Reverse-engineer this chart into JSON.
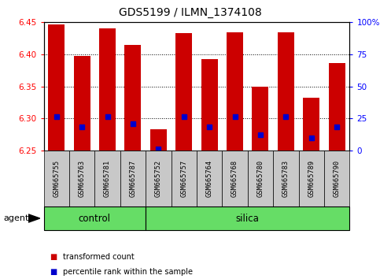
{
  "title": "GDS5199 / ILMN_1374108",
  "samples": [
    "GSM665755",
    "GSM665763",
    "GSM665781",
    "GSM665787",
    "GSM665752",
    "GSM665757",
    "GSM665764",
    "GSM665768",
    "GSM665780",
    "GSM665783",
    "GSM665789",
    "GSM665790"
  ],
  "n_control": 4,
  "n_silica": 8,
  "bar_tops": [
    6.447,
    6.398,
    6.44,
    6.415,
    6.283,
    6.433,
    6.393,
    6.435,
    6.35,
    6.435,
    6.333,
    6.387
  ],
  "blue_dots": [
    6.303,
    6.287,
    6.303,
    6.292,
    6.253,
    6.303,
    6.287,
    6.303,
    6.275,
    6.303,
    6.27,
    6.287
  ],
  "bar_bottom": 6.25,
  "ylim": [
    6.25,
    6.45
  ],
  "yticks_left": [
    6.25,
    6.3,
    6.35,
    6.4,
    6.45
  ],
  "yticks_right_pct": [
    0,
    25,
    50,
    75,
    100
  ],
  "ytick_labels_right": [
    "0",
    "25",
    "50",
    "75",
    "100%"
  ],
  "bar_color": "#cc0000",
  "dot_color": "#0000cc",
  "group_bg_color": "#66dd66",
  "sample_box_color": "#c8c8c8",
  "agent_label": "agent",
  "control_label": "control",
  "silica_label": "silica",
  "legend_items": [
    "transformed count",
    "percentile rank within the sample"
  ],
  "legend_colors": [
    "#cc0000",
    "#0000cc"
  ],
  "bar_width": 0.65
}
